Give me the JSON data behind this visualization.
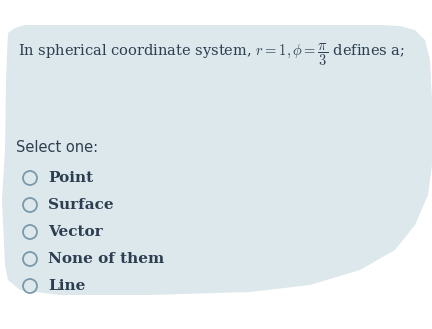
{
  "background_color": "#ffffff",
  "blob_color": "#dde8ed",
  "question_str": "In spherical coordinate system, $r = 1, \\phi = \\dfrac{\\pi}{3}$ defines a;",
  "select_one_label": "Select one:",
  "options": [
    "Point",
    "Surface",
    "Vector",
    "None of them",
    "Line"
  ],
  "text_color": "#2d3e50",
  "label_color": "#2d3e50",
  "option_color": "#2d3e50",
  "circle_color": "#7a9aaa",
  "question_fontsize": 10.5,
  "option_fontsize": 11,
  "select_fontsize": 10.5,
  "fig_width": 4.32,
  "fig_height": 3.29,
  "dpi": 100
}
